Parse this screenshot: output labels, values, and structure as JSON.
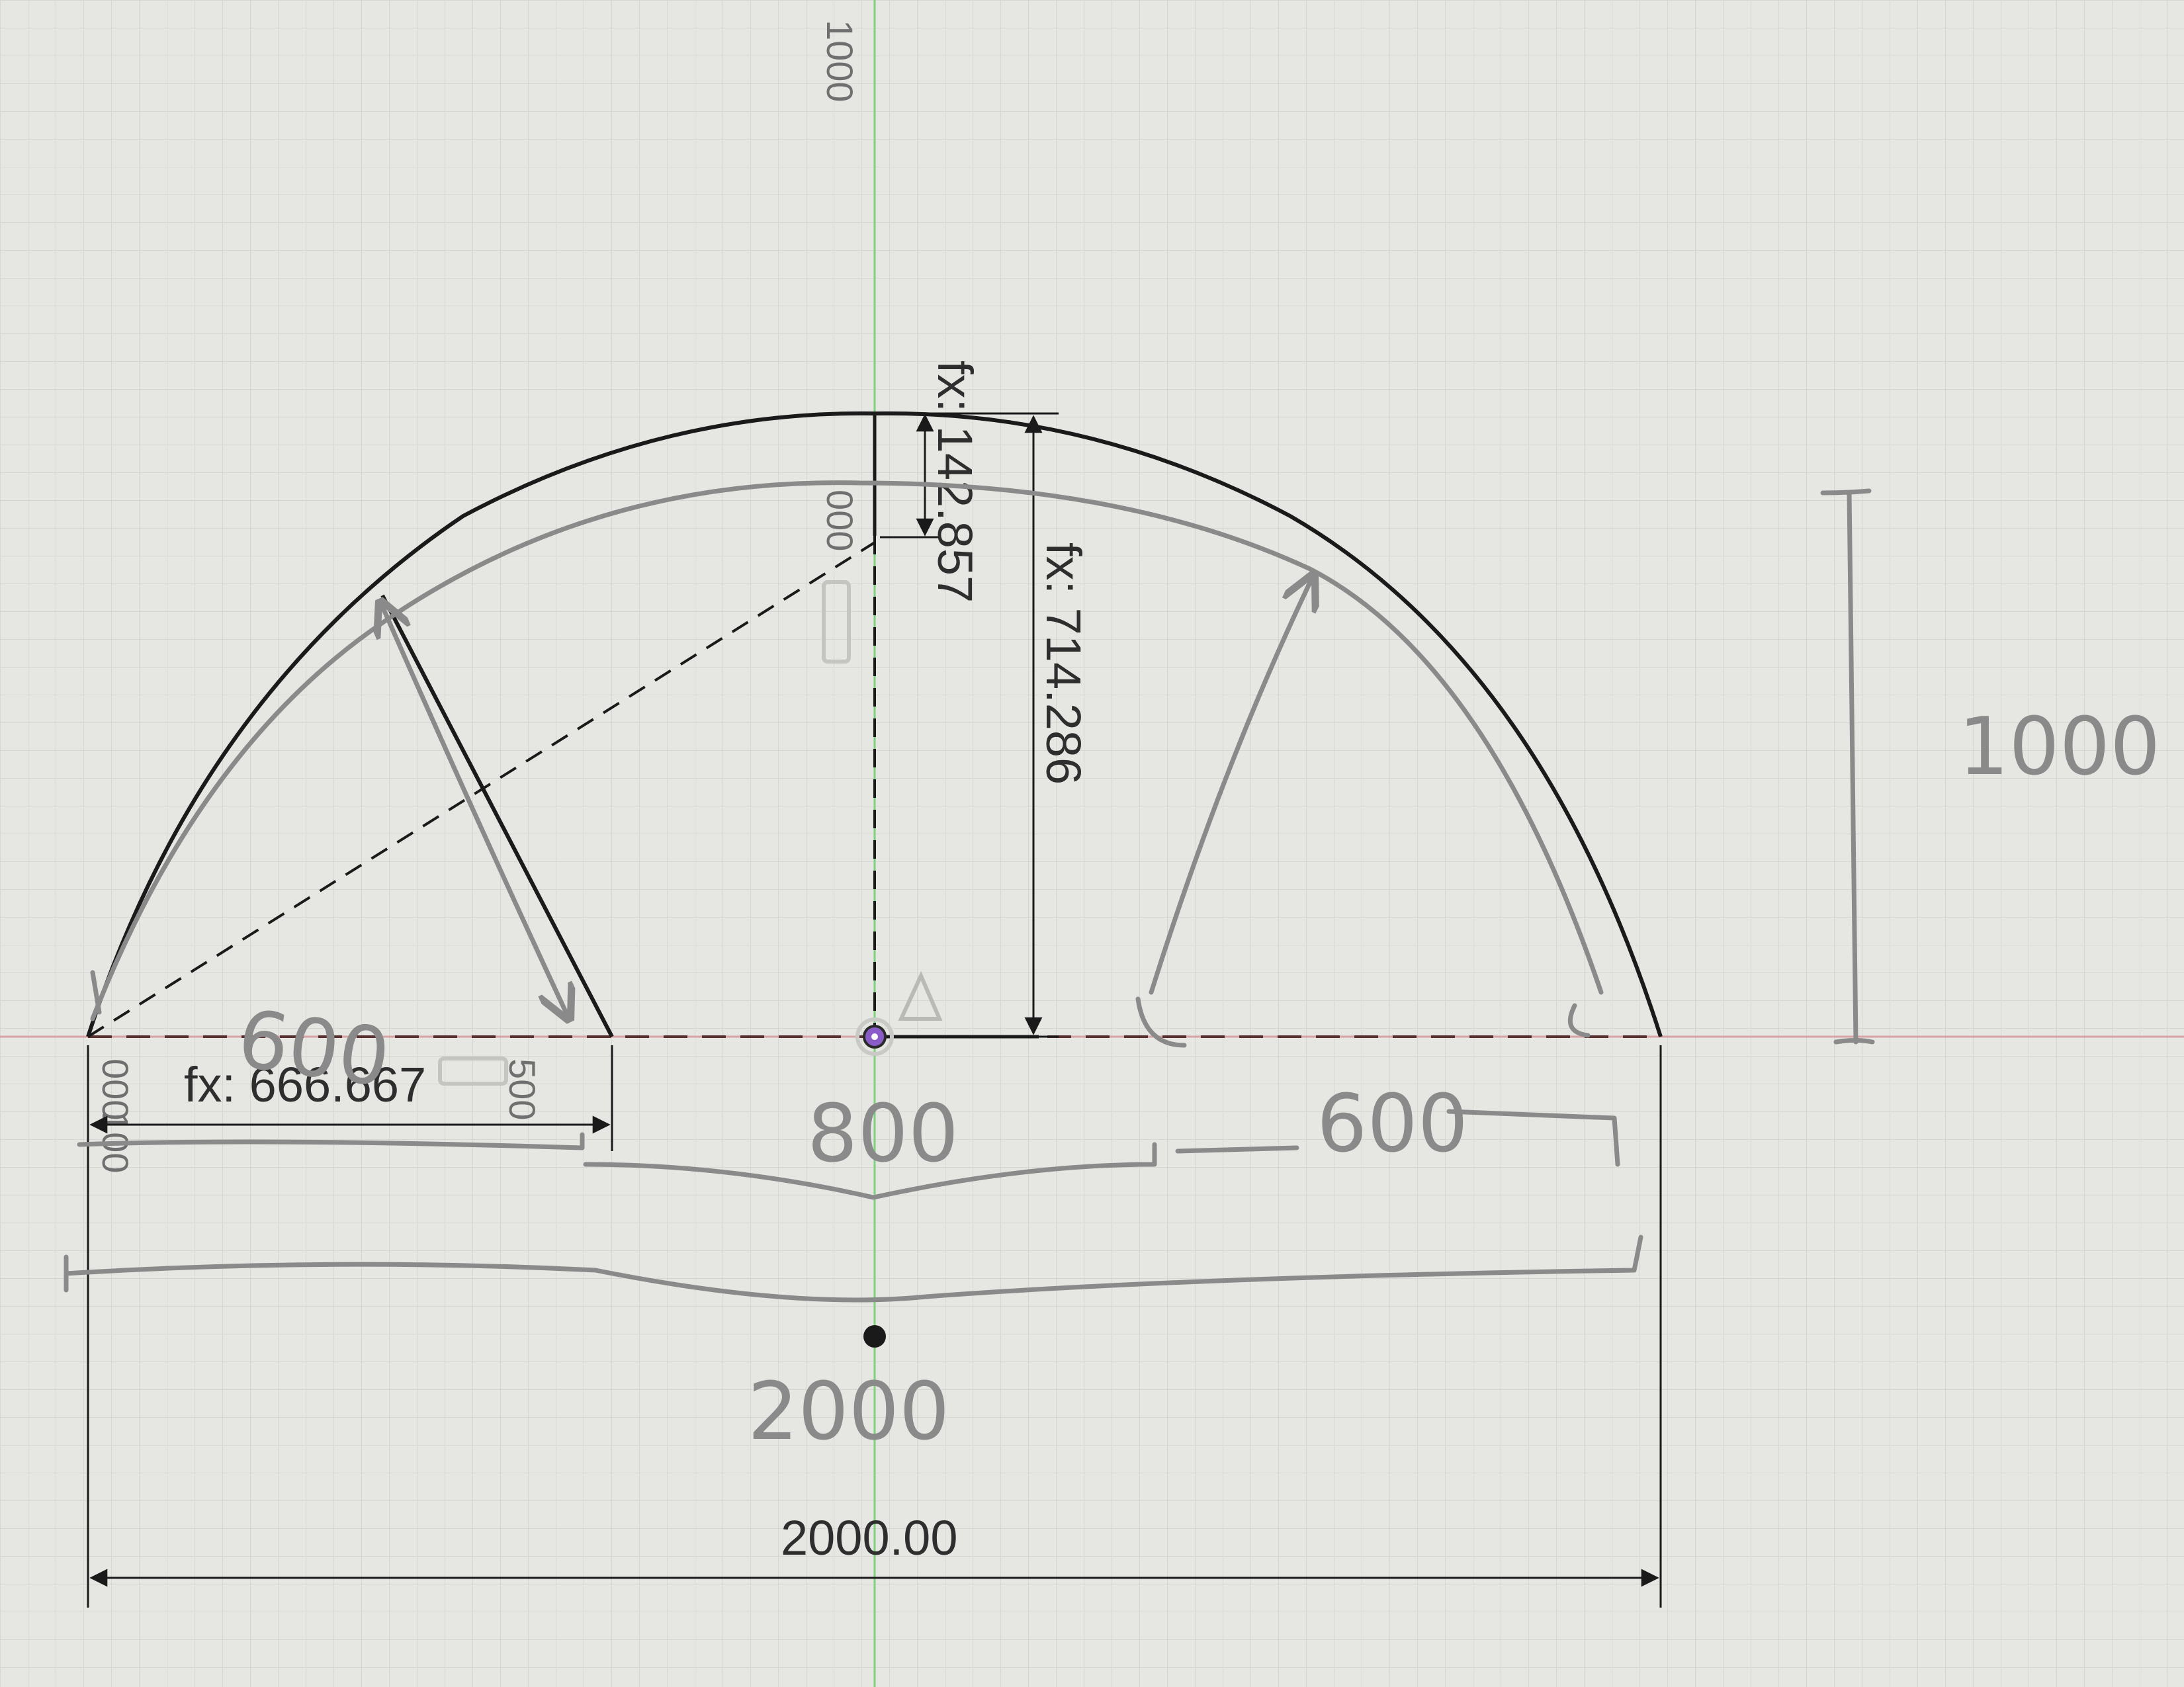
{
  "sketch": {
    "axis_labels": {
      "vertical_top": "1000",
      "vertical_mid": "000",
      "horizontal_left": "000",
      "horizontal_right": "500"
    },
    "dimensions": {
      "top_offset": "fx: 142.857",
      "center_height": "fx: 714.286",
      "left_width": "fx: 666.667",
      "overall_width": "2000.00"
    },
    "handwritten": {
      "height": "1000",
      "left_width": "600",
      "middle_width": "800",
      "right_width": "600",
      "overall_width": "2000"
    },
    "colors": {
      "background": "#e6e6e3",
      "grid": "#d2d2cf",
      "sketch_line": "#1a1a1a",
      "pen": "#8a8a8a",
      "vertical_axis": "#7fd07f",
      "horizontal_axis": "#d9a3a3",
      "origin": "#8a5cc7"
    }
  }
}
